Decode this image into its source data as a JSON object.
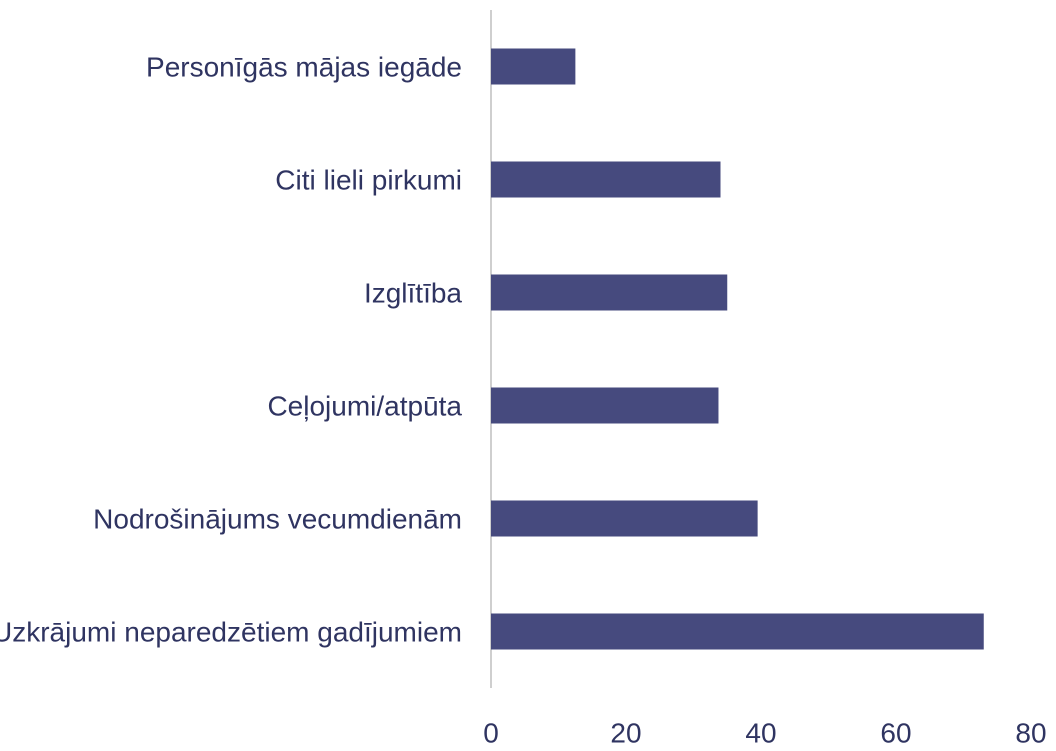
{
  "chart_data": {
    "type": "bar",
    "orientation": "horizontal",
    "categories": [
      "Personīgās mājas iegāde",
      "Citi lieli pirkumi",
      "Izglītība",
      "Ceļojumi/atpūta",
      "Nodrošinājums vecumdienām",
      "Uzkrājumi neparedzētiem gadījumiem"
    ],
    "values": [
      12.5,
      34,
      35,
      33.7,
      39.5,
      73
    ],
    "color": "#464a7e",
    "xlim": [
      0,
      80
    ],
    "xticks": [
      0,
      20,
      40,
      60,
      80
    ]
  }
}
